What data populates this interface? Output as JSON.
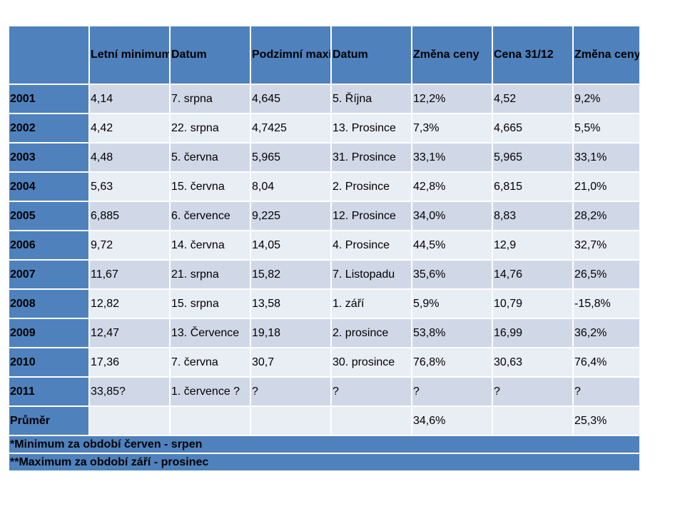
{
  "table": {
    "headers": [
      "",
      "Letní minimum*",
      "Datum",
      "Podzimní maximum**",
      "Datum",
      "Změna ceny",
      "Cena 31/12",
      "Změna ceny"
    ],
    "rows": [
      [
        "2001",
        "4,14",
        "7. srpna",
        "4,645",
        "5. Října",
        "12,2%",
        "4,52",
        "9,2%"
      ],
      [
        "2002",
        "4,42",
        "22. srpna",
        "4,7425",
        "13. Prosince",
        "7,3%",
        "4,665",
        "5,5%"
      ],
      [
        "2003",
        "4,48",
        "5. června",
        "5,965",
        "31. Prosince",
        "33,1%",
        "5,965",
        "33,1%"
      ],
      [
        "2004",
        "5,63",
        "15. června",
        "8,04",
        "2. Prosince",
        "42,8%",
        "6,815",
        "21,0%"
      ],
      [
        "2005",
        "6,885",
        "6. července",
        "9,225",
        "12. Prosince",
        "34,0%",
        "8,83",
        "28,2%"
      ],
      [
        "2006",
        "9,72",
        "14. června",
        "14,05",
        "4. Prosince",
        "44,5%",
        "12,9",
        "32,7%"
      ],
      [
        "2007",
        "11,67",
        "21. srpna",
        "15,82",
        "7. Listopadu",
        "35,6%",
        "14,76",
        "26,5%"
      ],
      [
        "2008",
        "12,82",
        "15. srpna",
        "13,58",
        "1. září",
        "5,9%",
        "10,79",
        "-15,8%"
      ],
      [
        "2009",
        "12,47",
        "13. Července",
        "19,18",
        "2. prosince",
        "53,8%",
        "16,99",
        "36,2%"
      ],
      [
        "2010",
        "17,36",
        "7. června",
        "30,7",
        "30. prosince",
        "76,8%",
        "30,63",
        "76,4%"
      ],
      [
        "2011",
        "33,85?",
        "1. července ?",
        " ?",
        "?",
        "?",
        "?",
        "?"
      ],
      [
        "Průměr",
        "",
        "",
        "",
        "",
        "34,6%",
        "",
        "25,3%"
      ]
    ],
    "footnotes": [
      "*Minimum za období červen - srpen",
      "**Maximum za období září - prosinec"
    ]
  },
  "colors": {
    "header": "#4f81bd",
    "row_odd": "#d0d8e8",
    "row_even": "#e9edf4"
  }
}
